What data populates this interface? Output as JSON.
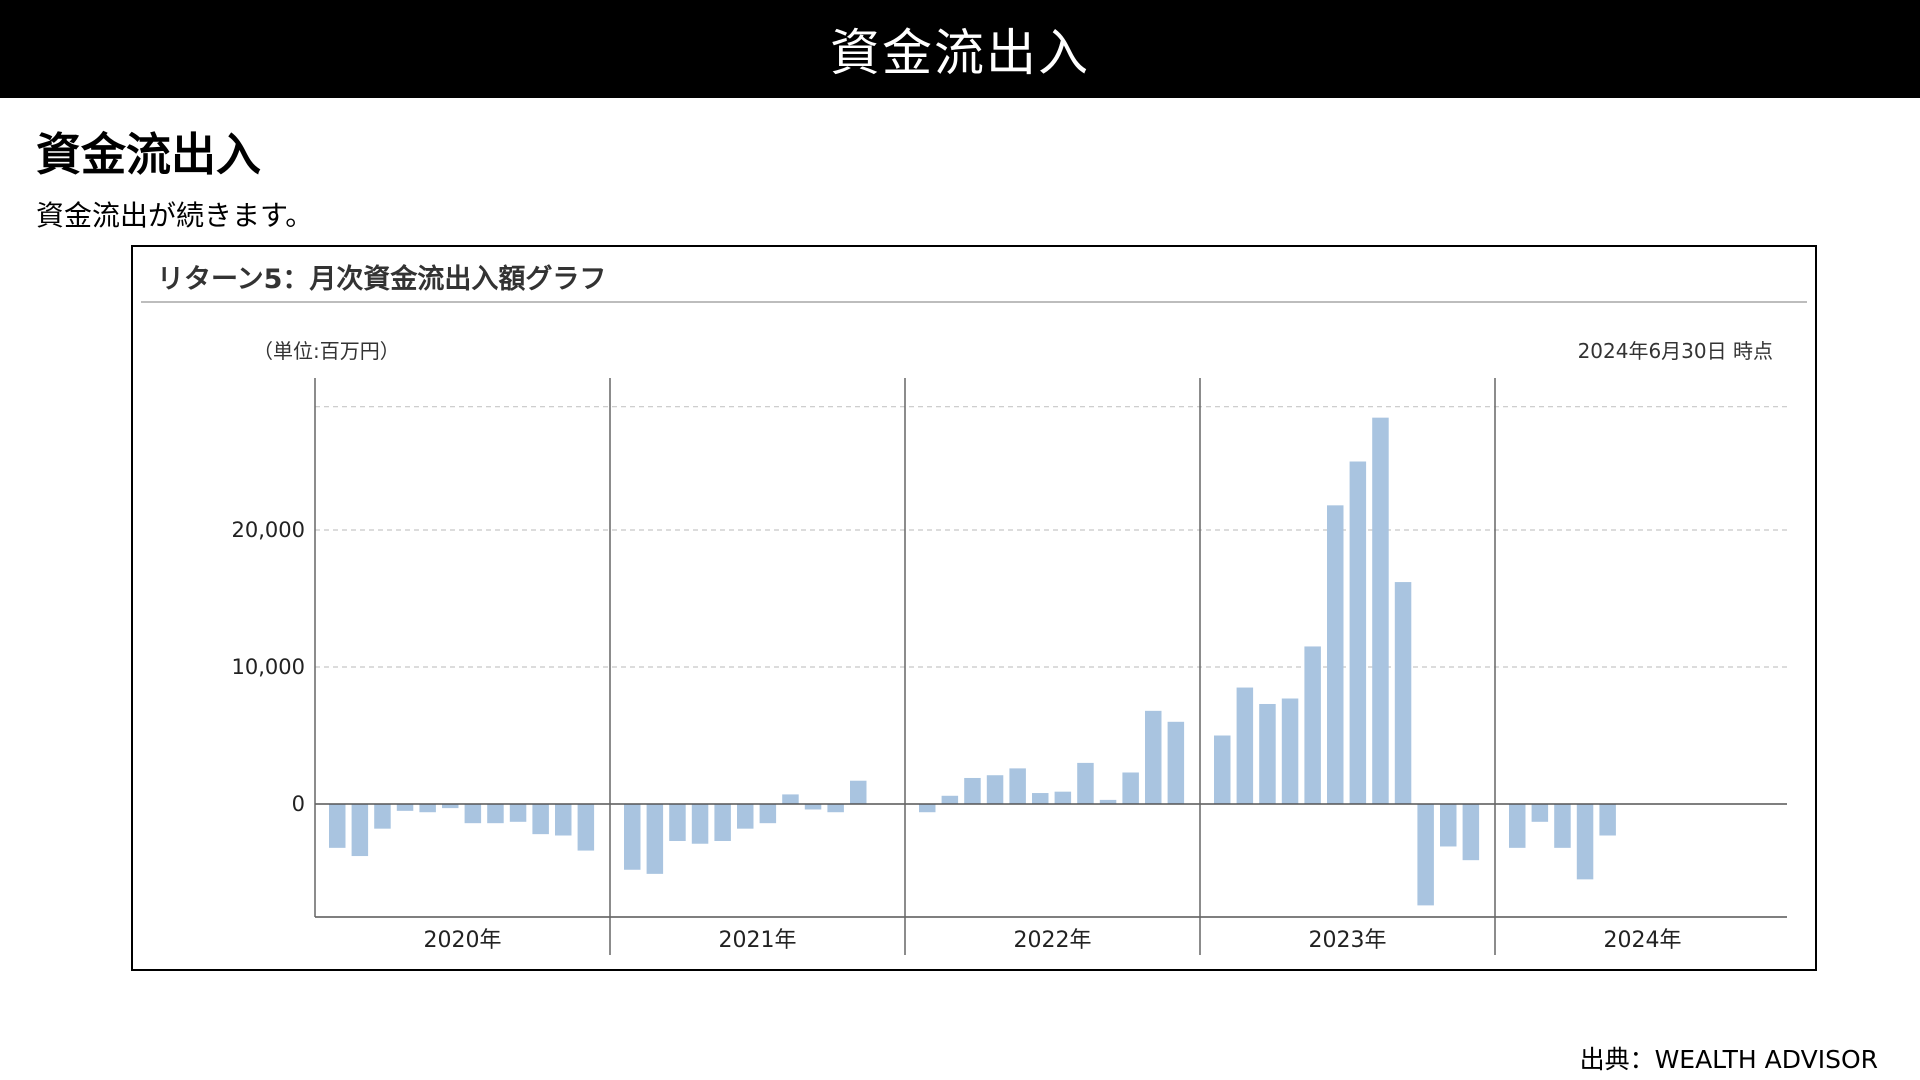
{
  "header": {
    "title": "資金流出入"
  },
  "section": {
    "heading": "資金流出入",
    "description": "資金流出が続きます。"
  },
  "chart_data": {
    "type": "bar",
    "title": "リターン5：月次資金流出入額グラフ",
    "unit_label": "（単位:百万円）",
    "as_of": "2024年6月30日 時点",
    "ylim": [
      -8000,
      30000
    ],
    "y_ticks": [
      {
        "value": 20000,
        "label": "20,000"
      },
      {
        "value": 10000,
        "label": "10,000"
      },
      {
        "value": 0,
        "label": "0"
      }
    ],
    "grid": true,
    "bar_color": "#a9c4e0",
    "years": [
      {
        "label": "2020年",
        "values": [
          -3200,
          -3800,
          -1800,
          -500,
          -600,
          -300,
          -1400,
          -1400,
          -1300,
          -2200,
          -2300,
          -3400
        ]
      },
      {
        "label": "2021年",
        "values": [
          -4800,
          -5100,
          -2700,
          -2900,
          -2700,
          -1800,
          -1400,
          700,
          -400,
          -600,
          1700
        ]
      },
      {
        "label": "2022年",
        "values": [
          -600,
          600,
          1900,
          2100,
          2600,
          800,
          900,
          3000,
          300,
          2300,
          6800,
          6000
        ]
      },
      {
        "label": "2023年",
        "values": [
          5000,
          8500,
          7300,
          7700,
          11500,
          21800,
          25000,
          28200,
          16200,
          -7400,
          -3100,
          -4100
        ]
      },
      {
        "label": "2024年",
        "values": [
          -3200,
          -1300,
          -3200,
          -5500,
          -2300
        ]
      }
    ]
  },
  "source": {
    "text": "出典：WEALTH ADVISOR"
  }
}
